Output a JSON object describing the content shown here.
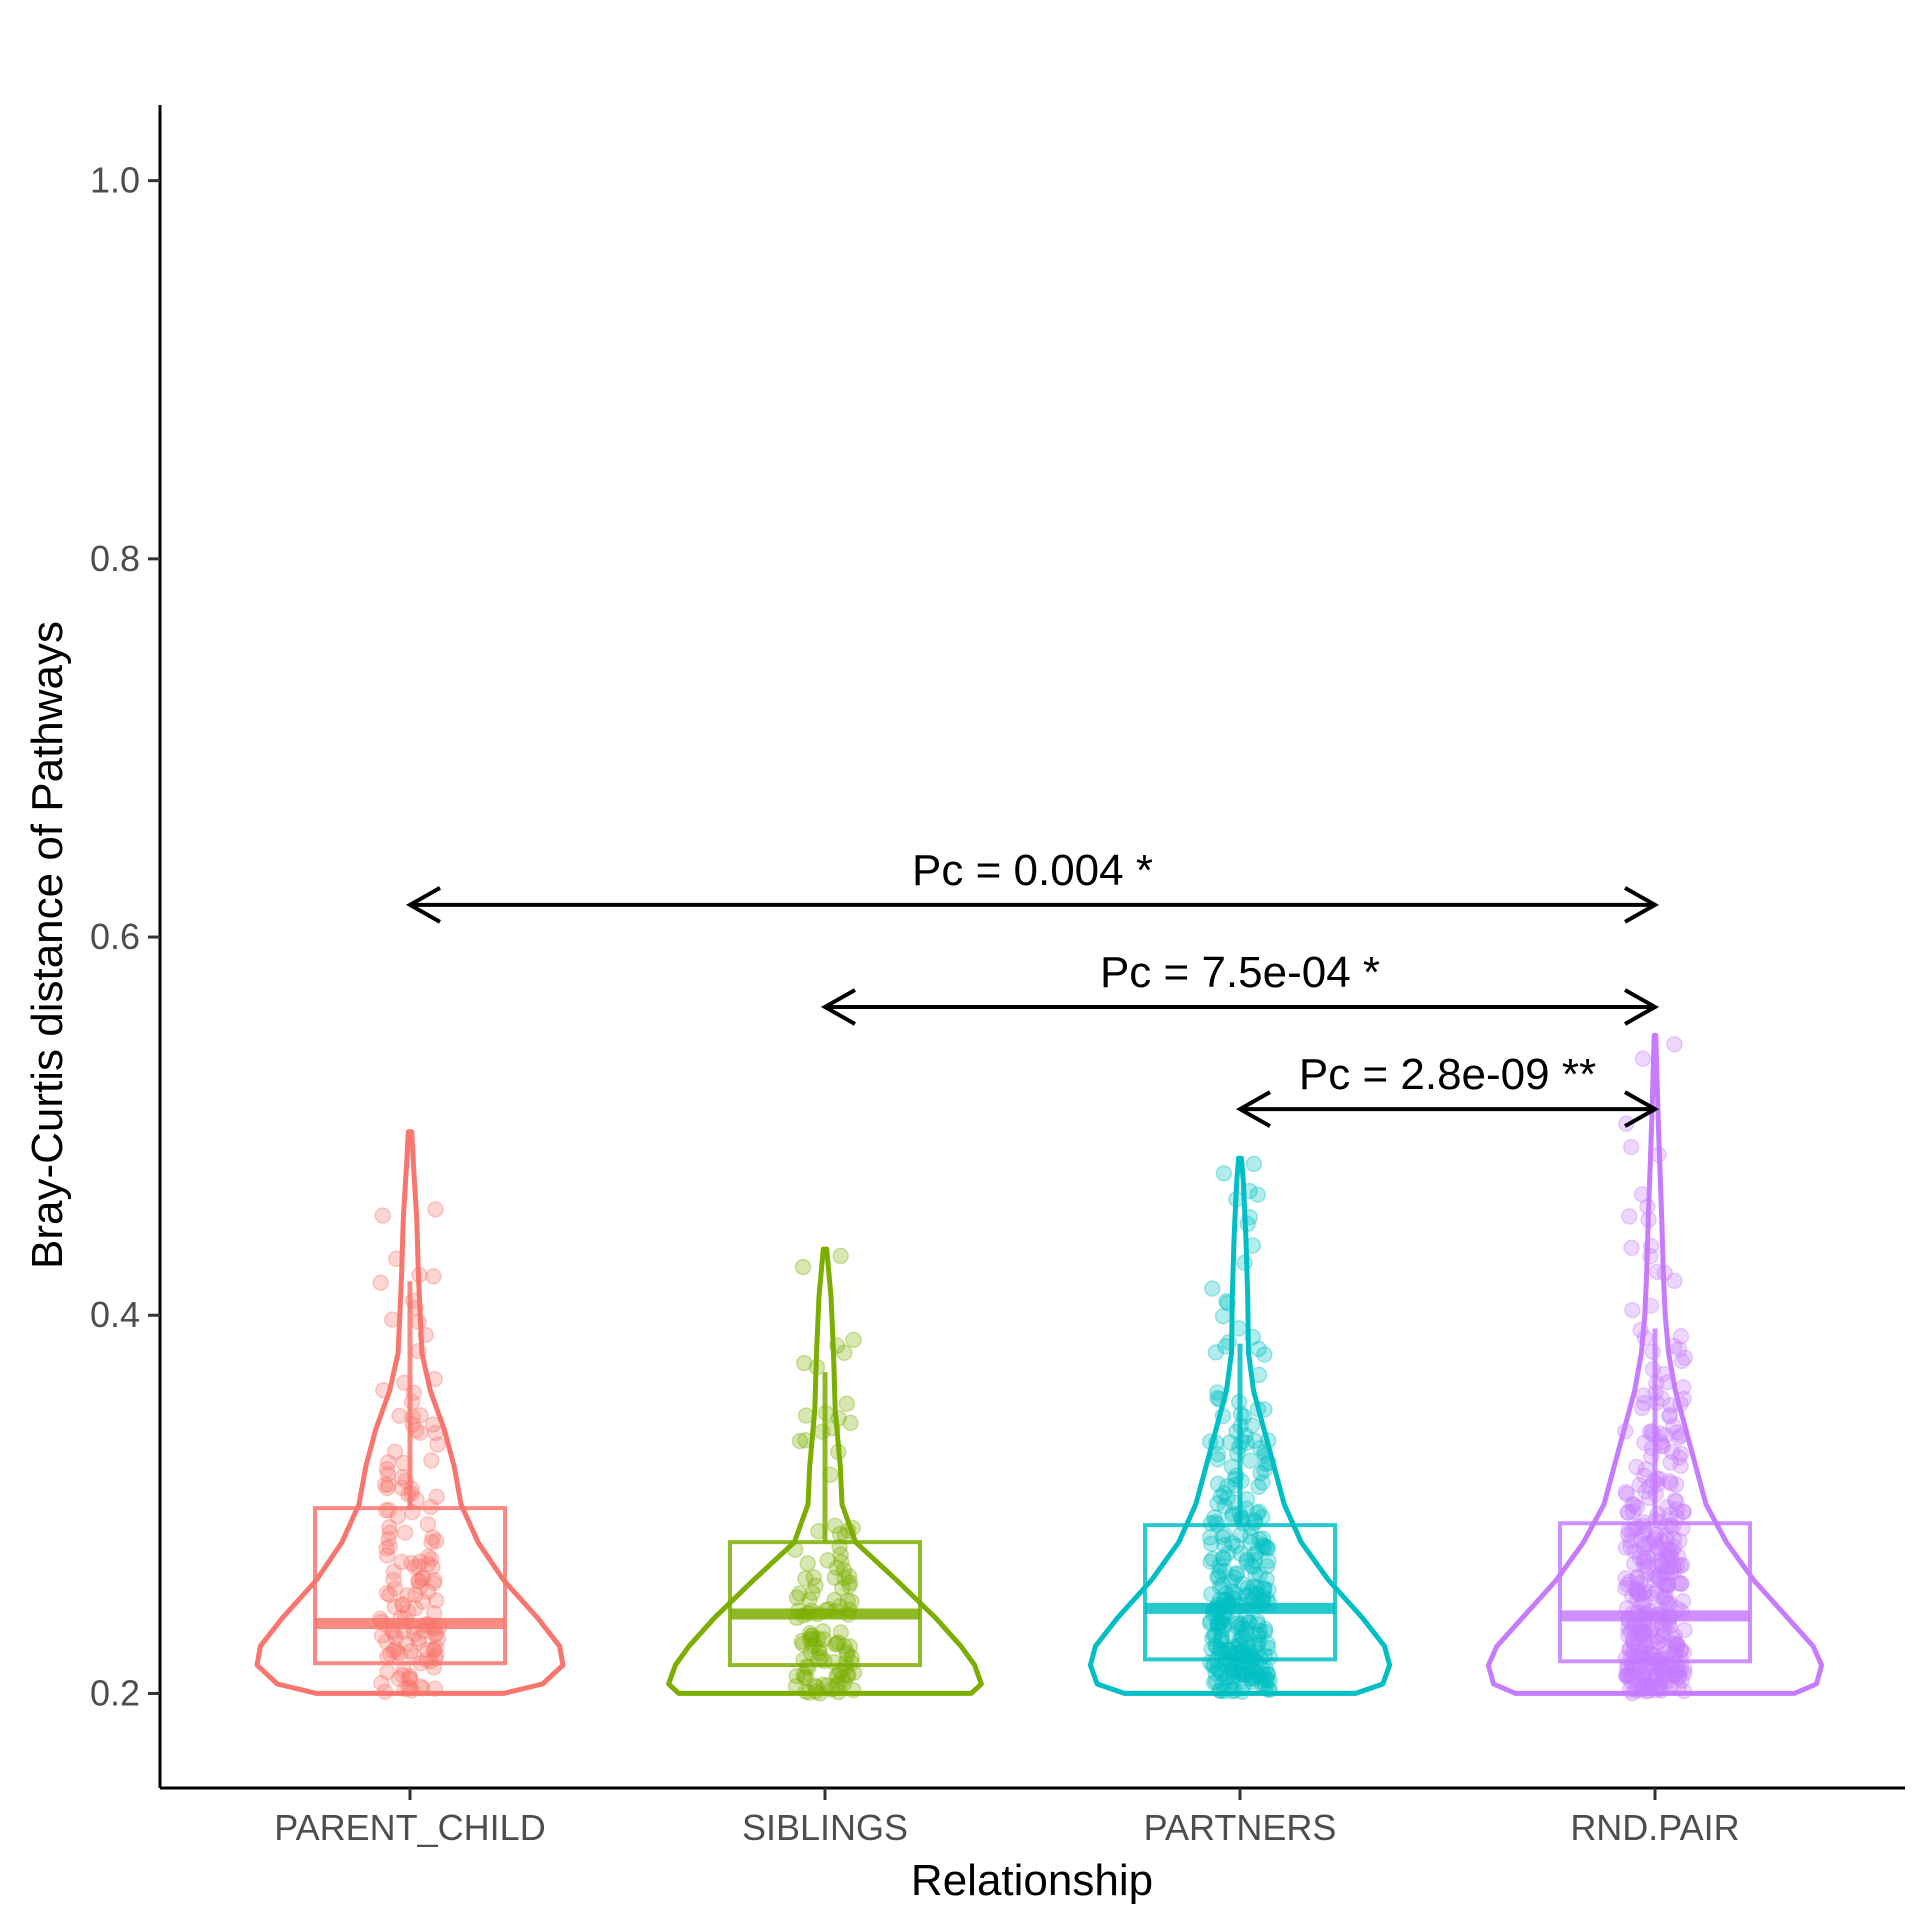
{
  "chart_data": {
    "type": "violin",
    "title": "",
    "xlabel": "Relationship",
    "ylabel": "Bray-Curtis distance of Pathways",
    "ylim": [
      0.15,
      1.04
    ],
    "yticks": [
      0.2,
      0.4,
      0.6,
      0.8,
      1.0
    ],
    "ytick_labels": [
      "0.2",
      "0.4",
      "0.6",
      "0.8",
      "1.0"
    ],
    "grid": false,
    "legend": "none",
    "categories": [
      "PARENT_CHILD",
      "SIBLINGS",
      "PARTNERS",
      "RND.PAIR"
    ],
    "colors": [
      "#F8766D",
      "#7CAE00",
      "#00BFC4",
      "#C77CFF"
    ],
    "boxes": [
      {
        "min": 0.2,
        "q1": 0.216,
        "median": 0.237,
        "q3": 0.298,
        "whisker_high": 0.418
      },
      {
        "min": 0.2,
        "q1": 0.215,
        "median": 0.242,
        "q3": 0.28,
        "whisker_high": 0.37
      },
      {
        "min": 0.2,
        "q1": 0.218,
        "median": 0.245,
        "q3": 0.289,
        "whisker_high": 0.385
      },
      {
        "min": 0.2,
        "q1": 0.217,
        "median": 0.241,
        "q3": 0.29,
        "whisker_high": 0.393
      }
    ],
    "violins": [
      {
        "max": 0.497,
        "profile": [
          [
            0.2,
            0.55
          ],
          [
            0.205,
            0.78
          ],
          [
            0.215,
            0.9
          ],
          [
            0.225,
            0.88
          ],
          [
            0.24,
            0.75
          ],
          [
            0.26,
            0.55
          ],
          [
            0.28,
            0.4
          ],
          [
            0.3,
            0.3
          ],
          [
            0.32,
            0.26
          ],
          [
            0.34,
            0.2
          ],
          [
            0.36,
            0.12
          ],
          [
            0.38,
            0.07
          ],
          [
            0.4,
            0.06
          ],
          [
            0.42,
            0.05
          ],
          [
            0.45,
            0.04
          ],
          [
            0.48,
            0.02
          ],
          [
            0.497,
            0.01
          ]
        ]
      },
      {
        "max": 0.435,
        "profile": [
          [
            0.2,
            0.86
          ],
          [
            0.205,
            0.92
          ],
          [
            0.215,
            0.88
          ],
          [
            0.225,
            0.8
          ],
          [
            0.24,
            0.65
          ],
          [
            0.26,
            0.42
          ],
          [
            0.28,
            0.18
          ],
          [
            0.3,
            0.1
          ],
          [
            0.32,
            0.09
          ],
          [
            0.35,
            0.06
          ],
          [
            0.38,
            0.05
          ],
          [
            0.41,
            0.035
          ],
          [
            0.435,
            0.01
          ]
        ]
      },
      {
        "max": 0.483,
        "profile": [
          [
            0.2,
            0.68
          ],
          [
            0.205,
            0.84
          ],
          [
            0.215,
            0.88
          ],
          [
            0.225,
            0.85
          ],
          [
            0.24,
            0.72
          ],
          [
            0.26,
            0.52
          ],
          [
            0.28,
            0.36
          ],
          [
            0.3,
            0.26
          ],
          [
            0.32,
            0.2
          ],
          [
            0.34,
            0.14
          ],
          [
            0.36,
            0.08
          ],
          [
            0.38,
            0.05
          ],
          [
            0.41,
            0.045
          ],
          [
            0.44,
            0.035
          ],
          [
            0.47,
            0.02
          ],
          [
            0.483,
            0.008
          ]
        ]
      },
      {
        "max": 0.548,
        "profile": [
          [
            0.2,
            0.82
          ],
          [
            0.205,
            0.95
          ],
          [
            0.215,
            0.98
          ],
          [
            0.225,
            0.93
          ],
          [
            0.24,
            0.78
          ],
          [
            0.26,
            0.58
          ],
          [
            0.28,
            0.42
          ],
          [
            0.3,
            0.3
          ],
          [
            0.32,
            0.24
          ],
          [
            0.34,
            0.18
          ],
          [
            0.36,
            0.12
          ],
          [
            0.38,
            0.08
          ],
          [
            0.4,
            0.06
          ],
          [
            0.42,
            0.05
          ],
          [
            0.45,
            0.04
          ],
          [
            0.5,
            0.02
          ],
          [
            0.548,
            0.005
          ]
        ]
      }
    ],
    "comparisons": [
      {
        "from": "PARENT_CHILD",
        "to": "RND.PAIR",
        "y": 0.617,
        "label": "Pc = 0.004 *"
      },
      {
        "from": "SIBLINGS",
        "to": "RND.PAIR",
        "y": 0.563,
        "label": "Pc = 7.5e-04 *"
      },
      {
        "from": "PARTNERS",
        "to": "RND.PAIR",
        "y": 0.509,
        "label": "Pc = 2.8e-09 **"
      }
    ]
  }
}
